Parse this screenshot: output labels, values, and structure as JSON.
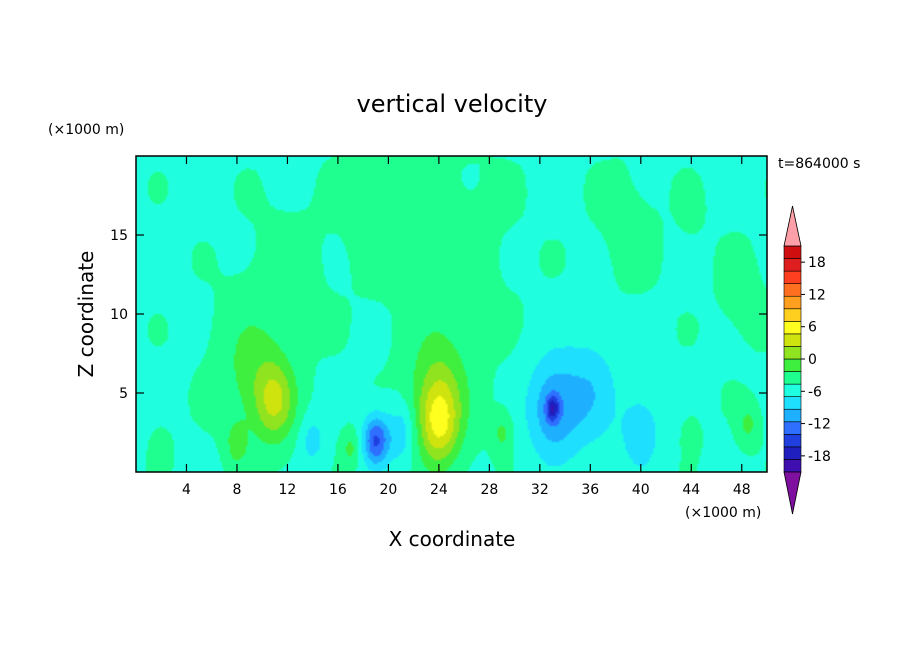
{
  "chart_data": {
    "type": "heatmap",
    "title": "vertical velocity",
    "xlabel": "X coordinate",
    "ylabel": "Z coordinate",
    "x_unit": "(×1000 m)",
    "y_unit": "(×1000 m)",
    "time_label": "t=864000 s",
    "xlim": [
      0,
      50
    ],
    "ylim": [
      0,
      20
    ],
    "x_ticks": [
      4,
      8,
      12,
      16,
      20,
      24,
      28,
      32,
      36,
      40,
      44,
      48
    ],
    "y_ticks": [
      5,
      10,
      15
    ],
    "colorbar": {
      "min": -21,
      "max": 21,
      "step": 3,
      "tick_labels": [
        18,
        12,
        6,
        0,
        -6,
        -12,
        -18
      ],
      "colors": [
        "#7f0f9f",
        "#3f0faf",
        "#1f1fbf",
        "#1f3fdf",
        "#2f6fff",
        "#1fafff",
        "#1fdfff",
        "#1fffdf",
        "#1fff8f",
        "#3fef3f",
        "#8fe31f",
        "#cfe30f",
        "#ffff1f",
        "#ffcf1f",
        "#ff9f1f",
        "#ff6f1f",
        "#ff3f1f",
        "#df1f1f",
        "#cf0f0f",
        "#ff9fa8"
      ],
      "extend": "both"
    },
    "features": [
      {
        "x": 11,
        "z": 4.5,
        "w": 1.6,
        "peak": 9
      },
      {
        "x": 9,
        "z": 6.5,
        "w": 2.5,
        "peak": 4
      },
      {
        "x": 8,
        "z": 1.8,
        "w": 0.8,
        "peak": 5
      },
      {
        "x": 17,
        "z": 1.5,
        "w": 0.7,
        "peak": 4
      },
      {
        "x": 24,
        "z": 3.0,
        "w": 1.6,
        "peak": 10
      },
      {
        "x": 24,
        "z": 5.2,
        "w": 2.3,
        "peak": 6
      },
      {
        "x": 29,
        "z": 2.5,
        "w": 0.8,
        "peak": 4
      },
      {
        "x": 44,
        "z": 2.3,
        "w": 0.6,
        "peak": 3
      },
      {
        "x": 48.5,
        "z": 3.0,
        "w": 0.8,
        "peak": 4
      },
      {
        "x": 2,
        "z": 1.5,
        "w": 0.7,
        "peak": 2
      },
      {
        "x": 19,
        "z": 2.0,
        "w": 1.0,
        "peak": -12
      },
      {
        "x": 33,
        "z": 4.0,
        "w": 2.0,
        "peak": -8
      },
      {
        "x": 33,
        "z": 4.0,
        "w": 0.5,
        "peak": -10
      },
      {
        "x": 40,
        "z": 2.5,
        "w": 1.5,
        "peak": -5
      },
      {
        "x": 14,
        "z": 2.0,
        "w": 1.0,
        "peak": -4
      },
      {
        "x": 21,
        "z": 2.5,
        "w": 1.2,
        "peak": -5
      },
      {
        "x": 36,
        "z": 5.0,
        "w": 2.2,
        "peak": -5
      },
      {
        "x": 12,
        "z": 12,
        "w": 3.0,
        "peak": 1.2
      },
      {
        "x": 25,
        "z": 13,
        "w": 4.5,
        "peak": 1.2
      },
      {
        "x": 19,
        "z": 17,
        "w": 3.0,
        "peak": 1.1
      },
      {
        "x": 39,
        "z": 15.5,
        "w": 2.5,
        "peak": 1.0
      },
      {
        "x": 48,
        "z": 11,
        "w": 2.0,
        "peak": 1.0
      },
      {
        "x": 44,
        "z": 16.5,
        "w": 1.0,
        "peak": 1.0
      }
    ]
  }
}
